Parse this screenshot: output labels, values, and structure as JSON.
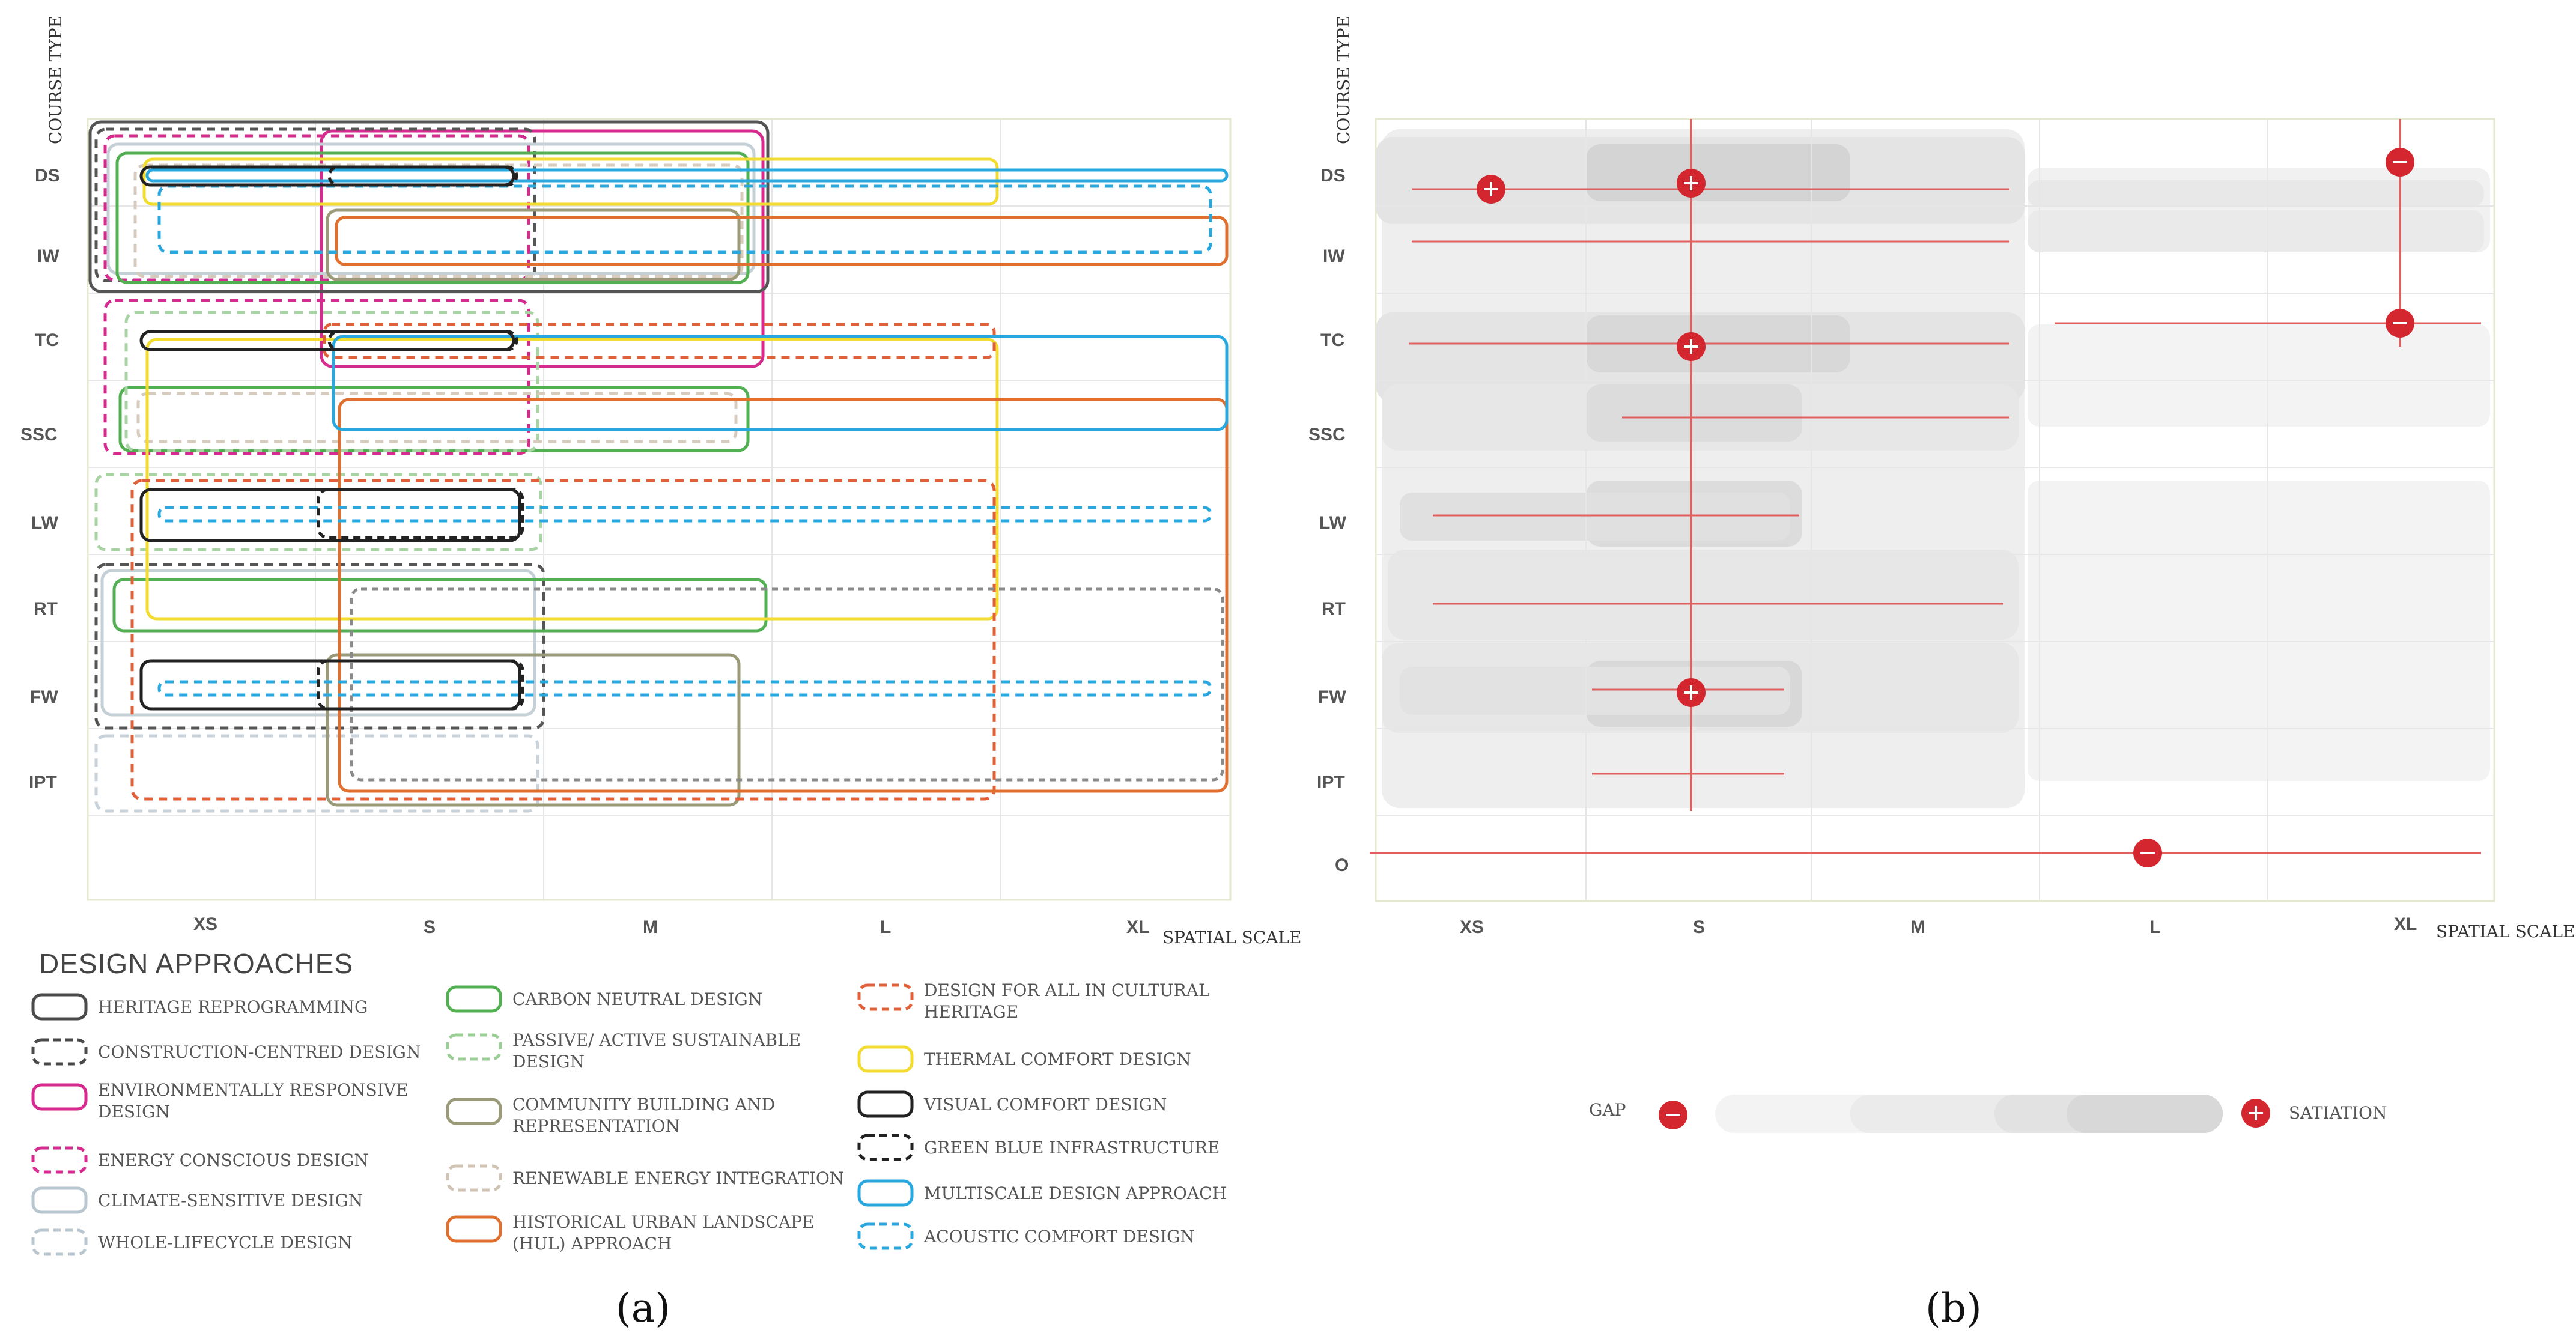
{
  "panel_a": {
    "y_axis_title": "COURSE TYPE",
    "x_axis_title": "SPATIAL SCALE",
    "rows": [
      "DS",
      "IW",
      "TC",
      "SSC",
      "LW",
      "RT",
      "FW",
      "IPT"
    ],
    "cols": [
      "XS",
      "S",
      "M",
      "L",
      "XL"
    ],
    "legend_title": "DESIGN APPROACHES",
    "caption": "(a)",
    "legend": [
      {
        "label": "HERITAGE REPROGRAMMING",
        "color": "#4a4a4a",
        "dashed": false
      },
      {
        "label": "CONSTRUCTION-CENTRED DESIGN",
        "color": "#4a4a4a",
        "dashed": true
      },
      {
        "label": "ENVIRONMENTALLY RESPONSIVE",
        "label2": "DESIGN",
        "color": "#d62a8e",
        "dashed": false
      },
      {
        "label": "ENERGY CONSCIOUS DESIGN",
        "color": "#d62a8e",
        "dashed": true
      },
      {
        "label": "CLIMATE-SENSITIVE DESIGN",
        "color": "#b8c6cf",
        "dashed": false
      },
      {
        "label": "WHOLE-LIFECYCLE DESIGN",
        "color": "#b8c6cf",
        "dashed": true
      },
      {
        "label": "CARBON NEUTRAL DESIGN",
        "color": "#52b052",
        "dashed": false
      },
      {
        "label": "PASSIVE/ ACTIVE SUSTAINABLE",
        "label2": "DESIGN",
        "color": "#9ccf97",
        "dashed": true
      },
      {
        "label": "COMMUNITY BUILDING AND",
        "label2": "REPRESENTATION",
        "color": "#9a9a78",
        "dashed": false
      },
      {
        "label": "RENEWABLE ENERGY INTEGRATION",
        "color": "#d0c4b4",
        "dashed": true
      },
      {
        "label": "HISTORICAL URBAN LANDSCAPE",
        "label2": "(HUL) APPROACH",
        "color": "#e07030",
        "dashed": false
      },
      {
        "label": "DESIGN FOR ALL IN CULTURAL",
        "label2": "HERITAGE",
        "color": "#e0603a",
        "dashed": true
      },
      {
        "label": "THERMAL COMFORT DESIGN",
        "color": "#f2dc30",
        "dashed": false
      },
      {
        "label": "VISUAL COMFORT DESIGN",
        "color": "#222222",
        "dashed": false
      },
      {
        "label": "GREEN BLUE INFRASTRUCTURE",
        "color": "#222222",
        "dashed": true
      },
      {
        "label": "MULTISCALE DESIGN APPROACH",
        "color": "#29a8e0",
        "dashed": false
      },
      {
        "label": "ACOUSTIC COMFORT DESIGN",
        "color": "#29a8e0",
        "dashed": true
      }
    ]
  },
  "panel_b": {
    "y_axis_title": "COURSE TYPE",
    "x_axis_title": "SPATIAL SCALE",
    "rows": [
      "DS",
      "IW",
      "TC",
      "SSC",
      "LW",
      "RT",
      "FW",
      "IPT",
      "O"
    ],
    "cols": [
      "XS",
      "S",
      "M",
      "L",
      "XL"
    ],
    "scale_left": "GAP",
    "scale_right": "SATIATION",
    "caption": "(b)",
    "markers": [
      {
        "type": "plus",
        "row": "DS",
        "col": "XS"
      },
      {
        "type": "plus",
        "row": "DS",
        "col": "S"
      },
      {
        "type": "minus",
        "row": "DS",
        "col": "XL"
      },
      {
        "type": "plus",
        "row": "TC",
        "col": "S"
      },
      {
        "type": "minus",
        "row": "TC",
        "col": "XL"
      },
      {
        "type": "plus",
        "row": "FW",
        "col": "S"
      },
      {
        "type": "minus",
        "row": "O",
        "col": "L"
      }
    ]
  },
  "colors": {
    "marker": "#d3262e",
    "grid": "#e4e8d0",
    "line": "#e06060"
  }
}
